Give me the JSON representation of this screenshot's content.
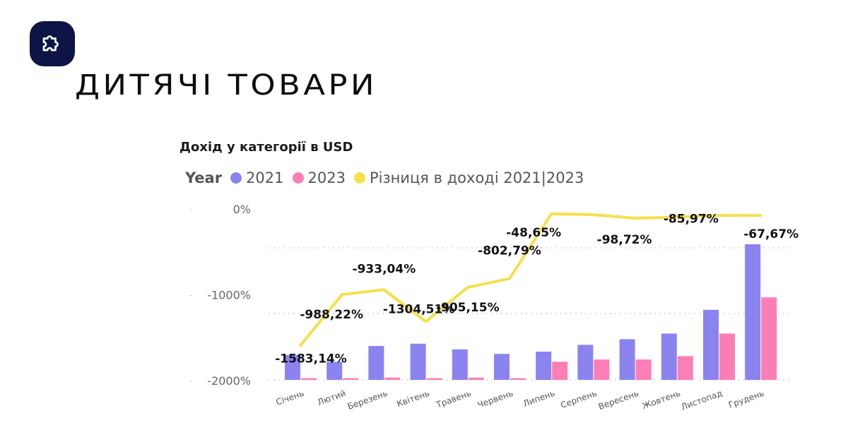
{
  "page": {
    "title": "ДИТЯЧІ ТОВАРИ",
    "logo_icon": "puzzle-icon"
  },
  "legend": {
    "title": "Year",
    "items": [
      {
        "label": "2021",
        "color": "#8b83ef"
      },
      {
        "label": "2023",
        "color": "#fb7eb5"
      },
      {
        "label": "Різниця в доході 2021|2023",
        "color": "#f5e04a"
      }
    ]
  },
  "chart_data": {
    "type": "bar",
    "title": "Дохід у категорії в USD",
    "categories": [
      "Січень",
      "Лютий",
      "Березень",
      "Квітень",
      "Травень",
      "Червень",
      "Липень",
      "Серпень",
      "Вересень",
      "Жовтень",
      "Листопад",
      "Грудень"
    ],
    "series": [
      {
        "name": "2021",
        "color": "#8b83ef",
        "values": [
          0.22,
          0.16,
          0.3,
          0.32,
          0.27,
          0.23,
          0.25,
          0.31,
          0.36,
          0.41,
          0.62,
          1.2
        ]
      },
      {
        "name": "2023",
        "color": "#fb7eb5",
        "values": [
          0.015,
          0.015,
          0.02,
          0.015,
          0.02,
          0.015,
          0.16,
          0.18,
          0.18,
          0.21,
          0.41,
          0.73
        ]
      }
    ],
    "line_series": {
      "name": "Різниця в доході 2021|2023",
      "color": "#f5e04a",
      "values": [
        -1583.14,
        -988.22,
        -933.04,
        -1304.51,
        -905.15,
        -802.79,
        -48.65,
        -59.0,
        -98.72,
        -85.97,
        -67.0,
        -67.67
      ],
      "labels": [
        "-1583,14%",
        "-988,22%",
        "-933,04%",
        "-1304,51%",
        "-905,15%",
        "-802,79%",
        "-48,65%",
        "",
        "-98,72%",
        "-85,97%",
        "",
        "-67,67%"
      ]
    },
    "y_axis": {
      "ticks": [
        {
          "value": 0,
          "label": "0%"
        },
        {
          "value": -1000,
          "label": "-1000%"
        },
        {
          "value": -2000,
          "label": "-2000%"
        }
      ],
      "range": [
        -2000,
        0
      ]
    },
    "grid": true,
    "legend_position": "top-left"
  }
}
